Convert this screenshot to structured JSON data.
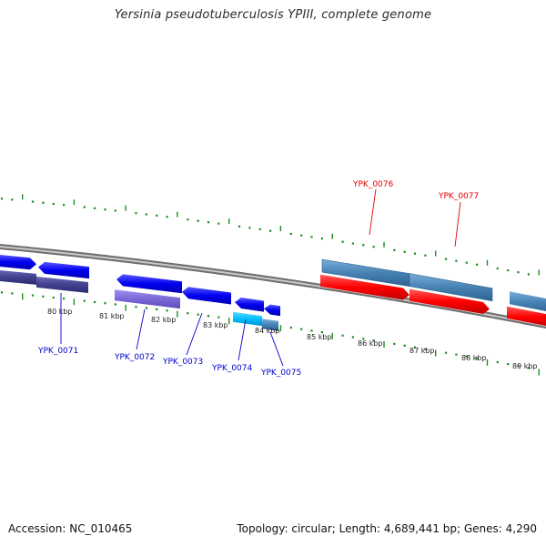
{
  "title": "Yersinia pseudotuberculosis YPIII, complete genome",
  "footer": {
    "accession": "Accession: NC_010465",
    "topology": "Topology: circular; Length: 4,689,441 bp; Genes: 4,290"
  },
  "colors": {
    "forward_cds": "#0000ff",
    "reverse_cds": "#4040a0",
    "highlight_forward": "#ff0000",
    "highlight_reverse": "#4682b4",
    "label_blue": "#0000cc",
    "label_red": "#dd0000",
    "ticks": "#1e8c1e",
    "backbone": "#808080"
  },
  "kbp_labels": [
    "80 kbp",
    "81 kbp",
    "82 kbp",
    "83 kbp",
    "84 kbp",
    "85 kbp",
    "86 kbp",
    "87 kbp",
    "88 kbp",
    "89 kbp"
  ],
  "gene_labels": [
    {
      "id": "g71",
      "text": "YPK_0071",
      "color": "blue"
    },
    {
      "id": "g72",
      "text": "YPK_0072",
      "color": "blue"
    },
    {
      "id": "g73",
      "text": "YPK_0073",
      "color": "blue"
    },
    {
      "id": "g74",
      "text": "YPK_0074",
      "color": "blue"
    },
    {
      "id": "g75",
      "text": "YPK_0075",
      "color": "blue"
    },
    {
      "id": "g76",
      "text": "YPK_0076",
      "color": "red"
    },
    {
      "id": "g77",
      "text": "YPK_0077",
      "color": "red"
    }
  ]
}
